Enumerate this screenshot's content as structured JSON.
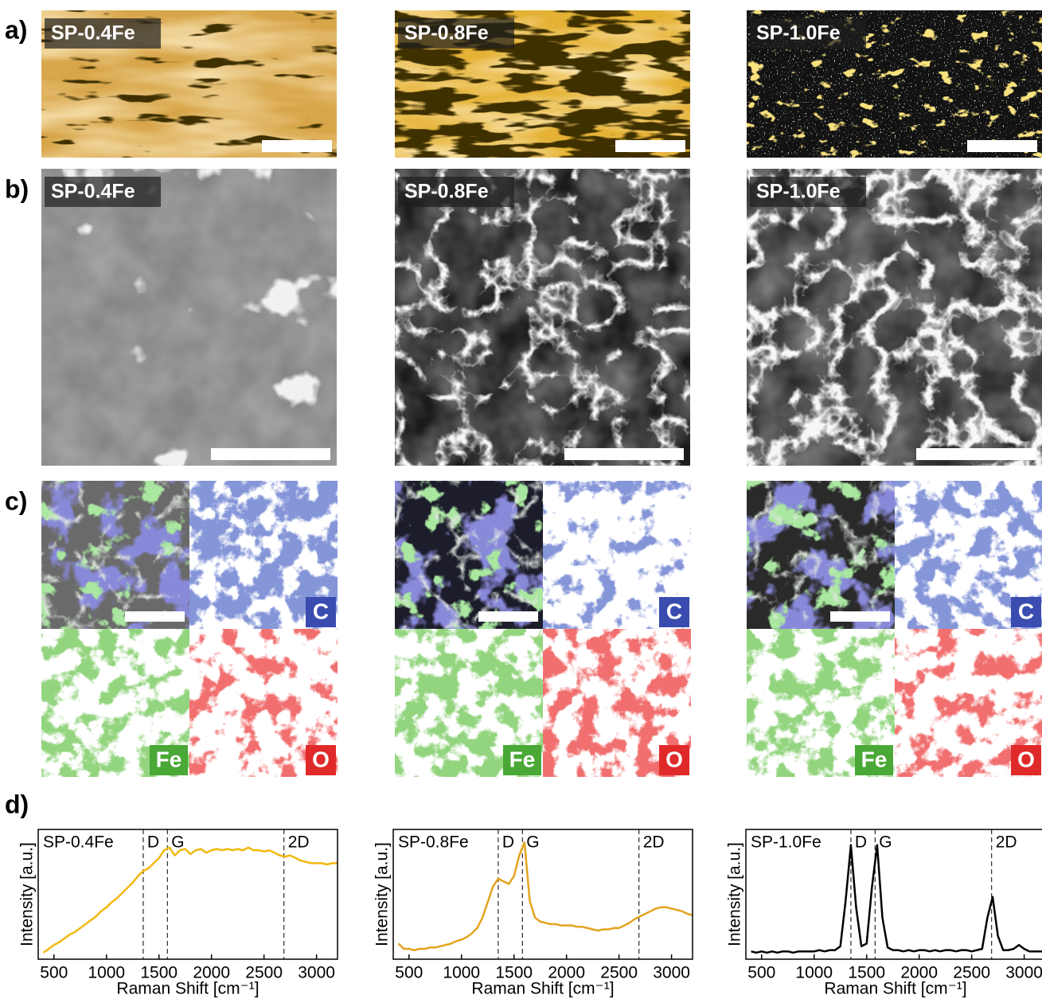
{
  "panels": {
    "a": {
      "label": "a)"
    },
    "b": {
      "label": "b)"
    },
    "c": {
      "label": "c)"
    },
    "d": {
      "label": "d)"
    }
  },
  "samples": [
    "SP-0.4Fe",
    "SP-0.8Fe",
    "SP-1.0Fe"
  ],
  "elements": [
    "C",
    "Fe",
    "O"
  ],
  "chart_data": [
    {
      "type": "line",
      "title": "SP-0.4Fe",
      "xlabel": "Raman Shift [cm⁻¹]",
      "ylabel": "Intensity [a.u.]",
      "color": "#f2b90f",
      "xlim": [
        350,
        3200
      ],
      "ylim": [
        0,
        1
      ],
      "xticks": [
        500,
        1000,
        1500,
        2000,
        2500,
        3000
      ],
      "markers": [
        {
          "label": "D",
          "x": 1350
        },
        {
          "label": "G",
          "x": 1580
        },
        {
          "label": "2D",
          "x": 2690
        }
      ],
      "x": [
        400,
        450,
        500,
        550,
        600,
        650,
        700,
        750,
        800,
        850,
        900,
        950,
        1000,
        1050,
        1100,
        1150,
        1200,
        1250,
        1300,
        1350,
        1400,
        1450,
        1500,
        1550,
        1600,
        1650,
        1700,
        1750,
        1800,
        1850,
        1900,
        1950,
        2000,
        2050,
        2100,
        2150,
        2200,
        2250,
        2300,
        2350,
        2400,
        2450,
        2500,
        2550,
        2600,
        2650,
        2700,
        2750,
        2800,
        2850,
        2900,
        2950,
        3000,
        3050,
        3100,
        3150,
        3200
      ],
      "values": [
        0.05,
        0.08,
        0.11,
        0.13,
        0.16,
        0.19,
        0.21,
        0.24,
        0.27,
        0.3,
        0.33,
        0.37,
        0.4,
        0.44,
        0.47,
        0.51,
        0.55,
        0.59,
        0.64,
        0.68,
        0.7,
        0.74,
        0.78,
        0.84,
        0.86,
        0.8,
        0.84,
        0.85,
        0.81,
        0.84,
        0.85,
        0.82,
        0.84,
        0.85,
        0.84,
        0.85,
        0.84,
        0.85,
        0.84,
        0.86,
        0.84,
        0.84,
        0.83,
        0.84,
        0.82,
        0.8,
        0.79,
        0.8,
        0.78,
        0.76,
        0.75,
        0.74,
        0.74,
        0.74,
        0.73,
        0.74,
        0.74
      ]
    },
    {
      "type": "line",
      "title": "SP-0.8Fe",
      "xlabel": "Raman Shift [cm⁻¹]",
      "ylabel": "Intensity [a.u.]",
      "color": "#e3a41f",
      "xlim": [
        350,
        3200
      ],
      "ylim": [
        0,
        1
      ],
      "xticks": [
        500,
        1000,
        1500,
        2000,
        2500,
        3000
      ],
      "markers": [
        {
          "label": "D",
          "x": 1350
        },
        {
          "label": "G",
          "x": 1580
        },
        {
          "label": "2D",
          "x": 2690
        }
      ],
      "x": [
        400,
        450,
        500,
        550,
        600,
        650,
        700,
        750,
        800,
        850,
        900,
        950,
        1000,
        1050,
        1100,
        1150,
        1200,
        1250,
        1300,
        1350,
        1400,
        1450,
        1500,
        1550,
        1600,
        1650,
        1700,
        1750,
        1800,
        1850,
        1900,
        1950,
        2000,
        2050,
        2100,
        2150,
        2200,
        2250,
        2300,
        2350,
        2400,
        2450,
        2500,
        2550,
        2600,
        2650,
        2700,
        2750,
        2800,
        2850,
        2900,
        2950,
        3000,
        3050,
        3100,
        3150,
        3200
      ],
      "values": [
        0.12,
        0.08,
        0.08,
        0.07,
        0.08,
        0.08,
        0.09,
        0.09,
        0.1,
        0.11,
        0.12,
        0.14,
        0.15,
        0.17,
        0.2,
        0.24,
        0.32,
        0.44,
        0.56,
        0.62,
        0.6,
        0.58,
        0.64,
        0.8,
        0.9,
        0.45,
        0.32,
        0.29,
        0.28,
        0.27,
        0.27,
        0.26,
        0.26,
        0.26,
        0.25,
        0.25,
        0.24,
        0.23,
        0.22,
        0.23,
        0.23,
        0.24,
        0.24,
        0.26,
        0.28,
        0.31,
        0.33,
        0.35,
        0.37,
        0.39,
        0.4,
        0.4,
        0.39,
        0.38,
        0.37,
        0.35,
        0.34
      ]
    },
    {
      "type": "line",
      "title": "SP-1.0Fe",
      "xlabel": "Raman Shift [cm⁻¹]",
      "ylabel": "Intensity [a.u.]",
      "color": "#000000",
      "xlim": [
        350,
        3200
      ],
      "ylim": [
        0,
        1
      ],
      "xticks": [
        500,
        1000,
        1500,
        2000,
        2500,
        3000
      ],
      "markers": [
        {
          "label": "D",
          "x": 1350
        },
        {
          "label": "G",
          "x": 1580
        },
        {
          "label": "2D",
          "x": 2690
        }
      ],
      "x": [
        400,
        450,
        500,
        550,
        600,
        650,
        700,
        750,
        800,
        850,
        900,
        950,
        1000,
        1050,
        1100,
        1150,
        1200,
        1250,
        1300,
        1350,
        1400,
        1450,
        1500,
        1550,
        1600,
        1650,
        1700,
        1750,
        1800,
        1850,
        1900,
        1950,
        2000,
        2050,
        2100,
        2150,
        2200,
        2250,
        2300,
        2350,
        2400,
        2450,
        2500,
        2550,
        2600,
        2650,
        2700,
        2750,
        2800,
        2850,
        2900,
        2950,
        3000,
        3050,
        3100,
        3150,
        3200
      ],
      "values": [
        0.06,
        0.05,
        0.06,
        0.05,
        0.06,
        0.05,
        0.06,
        0.06,
        0.05,
        0.06,
        0.06,
        0.06,
        0.06,
        0.07,
        0.06,
        0.07,
        0.07,
        0.1,
        0.45,
        0.88,
        0.4,
        0.1,
        0.12,
        0.55,
        0.88,
        0.32,
        0.09,
        0.07,
        0.07,
        0.06,
        0.07,
        0.06,
        0.07,
        0.07,
        0.06,
        0.07,
        0.06,
        0.07,
        0.07,
        0.06,
        0.07,
        0.07,
        0.06,
        0.07,
        0.08,
        0.32,
        0.48,
        0.18,
        0.07,
        0.07,
        0.08,
        0.11,
        0.08,
        0.06,
        0.06,
        0.06,
        0.06
      ]
    }
  ]
}
